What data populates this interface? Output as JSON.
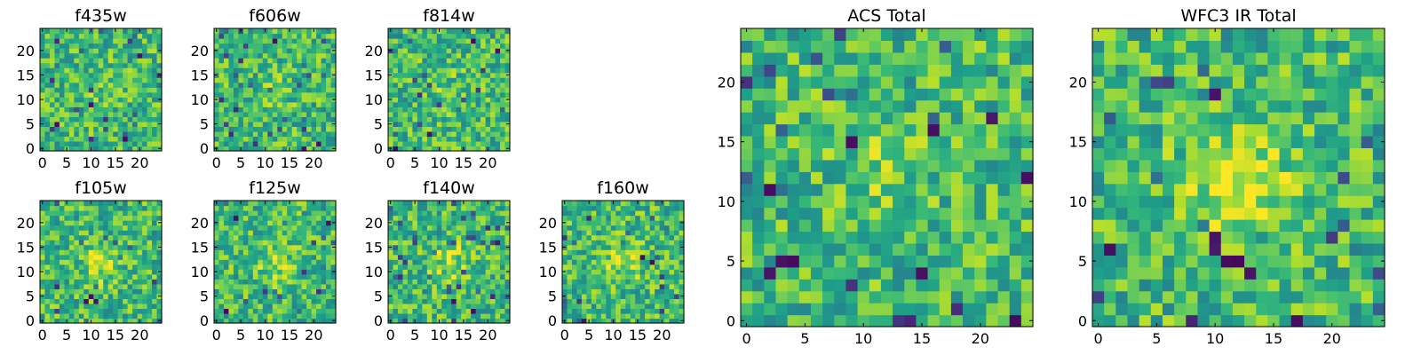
{
  "chart_data": [
    {
      "type": "heatmap",
      "title": "f435w",
      "grid_size": 25,
      "x_ticks": [
        "0",
        "5",
        "10",
        "15",
        "20"
      ],
      "y_ticks": [
        "0",
        "5",
        "10",
        "15",
        "20"
      ],
      "xlim": [
        -0.5,
        24.5
      ],
      "ylim": [
        -0.5,
        24.5
      ],
      "colormap": "viridis",
      "seed": 11,
      "center_blob": 0.15,
      "dark_spots": [
        [
          3,
          5
        ],
        [
          10,
          9
        ],
        [
          17,
          2
        ],
        [
          20,
          19
        ]
      ]
    },
    {
      "type": "heatmap",
      "title": "f606w",
      "grid_size": 25,
      "x_ticks": [
        "0",
        "5",
        "10",
        "15",
        "20"
      ],
      "y_ticks": [
        "0",
        "5",
        "10",
        "15",
        "20"
      ],
      "xlim": [
        -0.5,
        24.5
      ],
      "ylim": [
        -0.5,
        24.5
      ],
      "colormap": "viridis",
      "seed": 23,
      "center_blob": 0.2,
      "dark_spots": [
        [
          18,
          0
        ],
        [
          21,
          1
        ],
        [
          12,
          22
        ]
      ]
    },
    {
      "type": "heatmap",
      "title": "f814w",
      "grid_size": 25,
      "x_ticks": [
        "0",
        "5",
        "10",
        "15",
        "20"
      ],
      "y_ticks": [
        "0",
        "5",
        "10",
        "15",
        "20"
      ],
      "xlim": [
        -0.5,
        24.5
      ],
      "ylim": [
        -0.5,
        24.5
      ],
      "colormap": "viridis",
      "seed": 37,
      "center_blob": 0.2,
      "dark_spots": [
        [
          17,
          22
        ],
        [
          22,
          20
        ],
        [
          1,
          0
        ],
        [
          8,
          3
        ]
      ]
    },
    {
      "type": "heatmap",
      "title": "f105w",
      "grid_size": 25,
      "x_ticks": [
        "0",
        "5",
        "10",
        "15",
        "20"
      ],
      "y_ticks": [
        "0",
        "5",
        "10",
        "15",
        "20"
      ],
      "xlim": [
        -0.5,
        24.5
      ],
      "ylim": [
        -0.5,
        24.5
      ],
      "colormap": "viridis",
      "seed": 41,
      "center_blob": 0.55,
      "dark_spots": [
        [
          10,
          5
        ],
        [
          11,
          4
        ],
        [
          9,
          4
        ]
      ]
    },
    {
      "type": "heatmap",
      "title": "f125w",
      "grid_size": 25,
      "x_ticks": [
        "0",
        "5",
        "10",
        "15",
        "20"
      ],
      "y_ticks": [
        "0",
        "5",
        "10",
        "15",
        "20"
      ],
      "xlim": [
        -0.5,
        24.5
      ],
      "ylim": [
        -0.5,
        24.5
      ],
      "colormap": "viridis",
      "seed": 53,
      "center_blob": 0.45,
      "dark_spots": [
        [
          4,
          21
        ],
        [
          23,
          20
        ],
        [
          2,
          2
        ]
      ]
    },
    {
      "type": "heatmap",
      "title": "f140w",
      "grid_size": 25,
      "x_ticks": [
        "0",
        "5",
        "10",
        "15",
        "20"
      ],
      "y_ticks": [
        "0",
        "5",
        "10",
        "15",
        "20"
      ],
      "xlim": [
        -0.5,
        24.5
      ],
      "ylim": [
        -0.5,
        24.5
      ],
      "colormap": "viridis",
      "seed": 67,
      "center_blob": 0.5,
      "dark_spots": [
        [
          13,
          4
        ],
        [
          17,
          2
        ],
        [
          22,
          16
        ]
      ]
    },
    {
      "type": "heatmap",
      "title": "f160w",
      "grid_size": 25,
      "x_ticks": [
        "0",
        "5",
        "10",
        "15",
        "20"
      ],
      "y_ticks": [
        "0",
        "5",
        "10",
        "15",
        "20"
      ],
      "xlim": [
        -0.5,
        24.5
      ],
      "ylim": [
        -0.5,
        24.5
      ],
      "colormap": "viridis",
      "seed": 79,
      "center_blob": 0.5,
      "dark_spots": [
        [
          4,
          0
        ],
        [
          16,
          13
        ],
        [
          18,
          12
        ]
      ]
    },
    {
      "type": "heatmap",
      "title": "ACS Total",
      "grid_size": 25,
      "x_ticks": [
        "0",
        "5",
        "10",
        "15",
        "20"
      ],
      "y_ticks": [
        "0",
        "5",
        "10",
        "15",
        "20"
      ],
      "xlim": [
        -0.5,
        24.5
      ],
      "ylim": [
        -0.5,
        24.5
      ],
      "colormap": "viridis",
      "seed": 97,
      "center_blob": 0.3,
      "dark_spots": [
        [
          3,
          5
        ],
        [
          4,
          5
        ],
        [
          2,
          4
        ],
        [
          15,
          4
        ],
        [
          9,
          15
        ],
        [
          16,
          16
        ],
        [
          2,
          11
        ],
        [
          23,
          0
        ],
        [
          24,
          12
        ],
        [
          21,
          17
        ]
      ]
    },
    {
      "type": "heatmap",
      "title": "WFC3 IR Total",
      "grid_size": 25,
      "x_ticks": [
        "0",
        "5",
        "10",
        "15",
        "20"
      ],
      "y_ticks": [
        "0",
        "5",
        "10",
        "15",
        "20"
      ],
      "xlim": [
        -0.5,
        24.5
      ],
      "ylim": [
        -0.5,
        24.5
      ],
      "colormap": "viridis",
      "seed": 113,
      "center_blob": 0.9,
      "dark_spots": [
        [
          10,
          7
        ],
        [
          10,
          6
        ],
        [
          11,
          5
        ],
        [
          12,
          5
        ],
        [
          13,
          4
        ],
        [
          1,
          6
        ],
        [
          10,
          19
        ],
        [
          17,
          0
        ]
      ]
    }
  ]
}
